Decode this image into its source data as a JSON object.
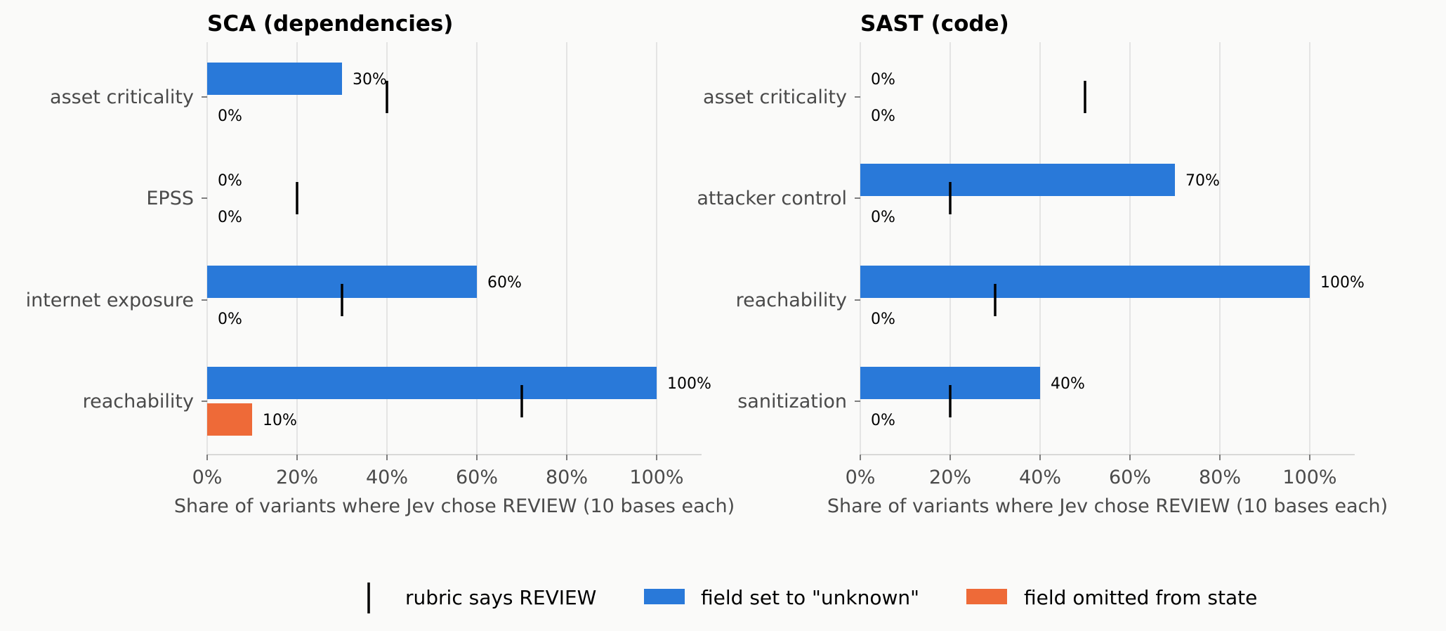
{
  "chart_data": [
    {
      "type": "bar",
      "orientation": "horizontal",
      "title": "SCA (dependencies)",
      "xlabel": "Share of variants where Jev chose REVIEW (10 bases each)",
      "xlim": [
        0,
        110
      ],
      "xticks": [
        0,
        20,
        40,
        60,
        80,
        100
      ],
      "xtick_labels": [
        "0%",
        "20%",
        "40%",
        "60%",
        "80%",
        "100%"
      ],
      "grid": "vertical",
      "categories": [
        "asset criticality",
        "EPSS",
        "internet exposure",
        "reachability"
      ],
      "series": [
        {
          "name": "field set to \"unknown\"",
          "color": "#2979d9",
          "values": [
            30,
            0,
            60,
            100
          ],
          "labels": [
            "30%",
            "0%",
            "60%",
            "100%"
          ]
        },
        {
          "name": "field omitted from state",
          "color": "#ee6a38",
          "values": [
            0,
            0,
            0,
            10
          ],
          "labels": [
            "0%",
            "0%",
            "0%",
            "10%"
          ]
        }
      ],
      "markers": {
        "name": "rubric says REVIEW",
        "values": [
          40,
          20,
          30,
          70
        ]
      }
    },
    {
      "type": "bar",
      "orientation": "horizontal",
      "title": "SAST (code)",
      "xlabel": "Share of variants where Jev chose REVIEW (10 bases each)",
      "xlim": [
        0,
        110
      ],
      "xticks": [
        0,
        20,
        40,
        60,
        80,
        100
      ],
      "xtick_labels": [
        "0%",
        "20%",
        "40%",
        "60%",
        "80%",
        "100%"
      ],
      "grid": "vertical",
      "categories": [
        "asset criticality",
        "attacker control",
        "reachability",
        "sanitization"
      ],
      "series": [
        {
          "name": "field set to \"unknown\"",
          "color": "#2979d9",
          "values": [
            0,
            70,
            100,
            40
          ],
          "labels": [
            "0%",
            "70%",
            "100%",
            "40%"
          ]
        },
        {
          "name": "field omitted from state",
          "color": "#ee6a38",
          "values": [
            0,
            0,
            0,
            0
          ],
          "labels": [
            "0%",
            "0%",
            "0%",
            "0%"
          ]
        }
      ],
      "markers": {
        "name": "rubric says REVIEW",
        "values": [
          50,
          20,
          30,
          20
        ]
      }
    }
  ],
  "legend": {
    "placement": "bottom-center",
    "items": [
      {
        "label": "rubric says REVIEW",
        "kind": "marker"
      },
      {
        "label": "field set to \"unknown\"",
        "kind": "bar",
        "color": "#2979d9"
      },
      {
        "label": "field omitted from state",
        "kind": "bar",
        "color": "#ee6a38"
      }
    ]
  }
}
